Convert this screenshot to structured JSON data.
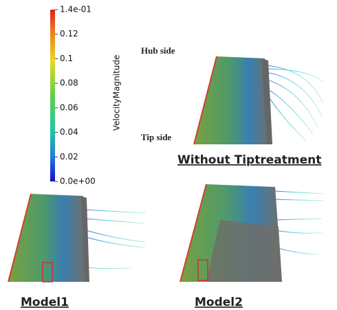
{
  "colorbar": {
    "title": "VelocityMagnitude",
    "ticks": [
      {
        "value": 0.14,
        "label": "1.4e-01"
      },
      {
        "value": 0.12,
        "label": "0.12"
      },
      {
        "value": 0.1,
        "label": "0.1"
      },
      {
        "value": 0.08,
        "label": "0.08"
      },
      {
        "value": 0.06,
        "label": "0.06"
      },
      {
        "value": 0.04,
        "label": "0.04"
      },
      {
        "value": 0.02,
        "label": "0.02"
      },
      {
        "value": 0,
        "label": "0.0e+00"
      }
    ]
  },
  "panels": [
    {
      "caption": "Without Tiptreatment",
      "hub_label": "Hub side",
      "tip_label": "Tip side"
    },
    {
      "caption": "Model1"
    },
    {
      "caption": "Model2"
    }
  ]
}
